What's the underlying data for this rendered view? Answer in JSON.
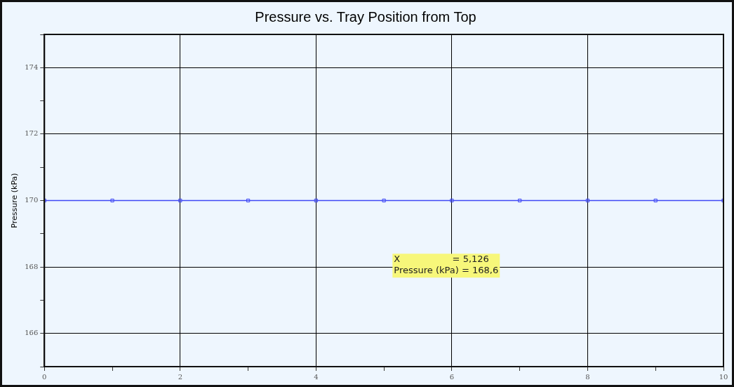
{
  "chart_data": {
    "type": "line",
    "title": "Pressure vs. Tray Position from Top",
    "ylabel": "Pressure (kPa)",
    "x": [
      0,
      1,
      2,
      3,
      4,
      5,
      6,
      7,
      8,
      9,
      10
    ],
    "series": [
      {
        "color": "#3f48f5",
        "values": [
          170,
          170,
          170,
          170,
          170,
          170,
          170,
          170,
          170,
          170,
          170
        ]
      }
    ],
    "xlim": [
      0,
      10
    ],
    "xticks": [
      0,
      {
        "value": 1,
        "label": null
      },
      2,
      {
        "value": 3,
        "label": null
      },
      4,
      {
        "value": 5,
        "label": null
      },
      6,
      {
        "value": 7,
        "label": null
      },
      8,
      {
        "value": 9,
        "label": null
      },
      10
    ],
    "ylim": [
      165,
      175
    ],
    "yticks": [
      {
        "value": 165,
        "label": null
      },
      166,
      {
        "value": 167,
        "label": null
      },
      168,
      {
        "value": 169,
        "label": null
      },
      170,
      {
        "value": 171,
        "label": null
      },
      172,
      {
        "value": 173,
        "label": null
      },
      174,
      {
        "value": 175,
        "label": null
      }
    ],
    "grid": true,
    "marker": "square",
    "line_style": "solid",
    "legend": false,
    "annotations": [
      "X                  = 5,126\nPressure (kPa) = 168,6"
    ]
  }
}
